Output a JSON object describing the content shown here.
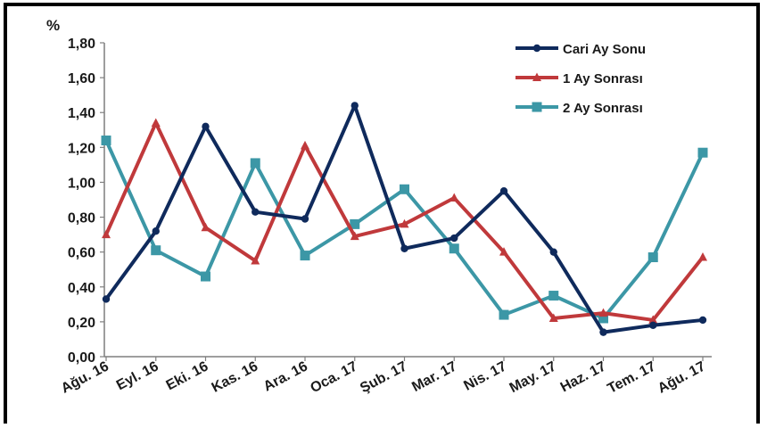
{
  "chart_data": {
    "type": "line",
    "title": "",
    "xlabel": "",
    "ylabel": "%",
    "ylim": [
      0,
      1.8
    ],
    "y_ticks": [
      "0,00",
      "0,20",
      "0,40",
      "0,60",
      "0,80",
      "1,00",
      "1,20",
      "1,40",
      "1,60",
      "1,80"
    ],
    "grid": false,
    "legend_position": "top-right",
    "categories": [
      "Ağu. 16",
      "Eyl. 16",
      "Eki. 16",
      "Kas. 16",
      "Ara. 16",
      "Oca. 17",
      "Şub. 17",
      "Mar. 17",
      "Nis. 17",
      "May. 17",
      "Haz. 17",
      "Tem. 17",
      "Ağu. 17"
    ],
    "series": [
      {
        "name": "Cari Ay Sonu",
        "color": "#0f2a5c",
        "marker": "diamond",
        "values": [
          0.33,
          0.72,
          1.32,
          0.83,
          0.79,
          1.44,
          0.62,
          0.68,
          0.95,
          0.6,
          0.14,
          0.18,
          0.21
        ]
      },
      {
        "name": "1 Ay Sonrası",
        "color": "#c0393b",
        "marker": "triangle",
        "values": [
          0.7,
          1.34,
          0.74,
          0.55,
          1.21,
          0.69,
          0.76,
          0.91,
          0.6,
          0.22,
          0.25,
          0.21,
          0.57
        ]
      },
      {
        "name": "2 Ay Sonrası",
        "color": "#3c97a6",
        "marker": "square",
        "values": [
          1.24,
          0.61,
          0.46,
          1.11,
          0.58,
          0.76,
          0.96,
          0.62,
          0.24,
          0.35,
          0.22,
          0.57,
          1.17
        ]
      }
    ]
  }
}
